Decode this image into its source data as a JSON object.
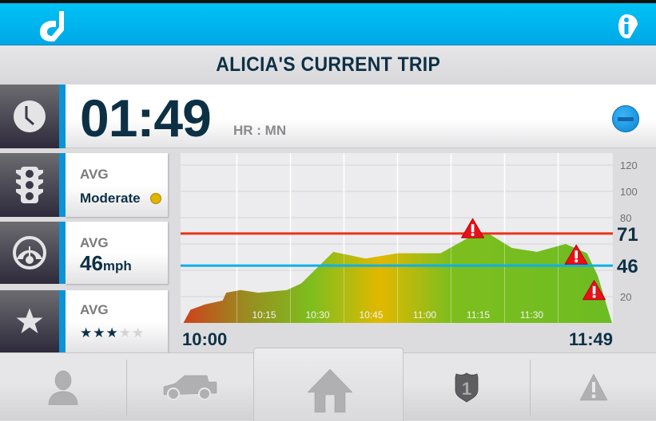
{
  "app": {
    "title": "ALICIA'S CURRENT TRIP",
    "logo_icon": "d-logo-icon",
    "info_icon": "info-icon",
    "accent_color": "#00b4ef"
  },
  "timer": {
    "value": "01:49",
    "unit": "HR : MN",
    "icon": "clock-icon",
    "collapse_icon": "minus-circle-icon"
  },
  "stats": [
    {
      "icon": "traffic-light-icon",
      "label": "AVG",
      "value": "Moderate",
      "indicator_color": "#e0b400"
    },
    {
      "icon": "speedometer-icon",
      "label": "AVG",
      "value": "46",
      "unit": "mph"
    },
    {
      "icon": "star-icon",
      "label": "AVG",
      "rating": 3,
      "rating_max": 5
    }
  ],
  "chart_data": {
    "type": "area",
    "x_start_label": "10:00",
    "x_end_label": "11:49",
    "x_tick_labels": [
      "10:15",
      "10:30",
      "10:45",
      "11:00",
      "11:15",
      "11:30"
    ],
    "y_tick_labels": [
      "120",
      "100",
      "80",
      "20"
    ],
    "ylim": [
      0,
      125
    ],
    "grid": true,
    "points": [
      {
        "t": "10:00",
        "v": 0
      },
      {
        "t": "10:02",
        "v": 10
      },
      {
        "t": "10:06",
        "v": 14
      },
      {
        "t": "10:11",
        "v": 17
      },
      {
        "t": "10:12",
        "v": 23
      },
      {
        "t": "10:16",
        "v": 25
      },
      {
        "t": "10:21",
        "v": 23
      },
      {
        "t": "10:29",
        "v": 25
      },
      {
        "t": "10:33",
        "v": 30
      },
      {
        "t": "10:42",
        "v": 54
      },
      {
        "t": "10:51",
        "v": 49
      },
      {
        "t": "11:00",
        "v": 53
      },
      {
        "t": "11:12",
        "v": 53
      },
      {
        "t": "11:22",
        "v": 68
      },
      {
        "t": "11:26",
        "v": 67
      },
      {
        "t": "11:32",
        "v": 57
      },
      {
        "t": "11:39",
        "v": 54
      },
      {
        "t": "11:47",
        "v": 60
      },
      {
        "t": "11:53",
        "v": 53
      },
      {
        "t": "11:56",
        "v": 36
      },
      {
        "t": "12:00",
        "v": 0
      }
    ],
    "thresholds": [
      {
        "label": "71",
        "value": 71,
        "color": "#e8341c"
      },
      {
        "label": "46",
        "value": 46,
        "color": "#0bb0ea"
      }
    ],
    "warnings": [
      {
        "t": "11:21",
        "v": 72
      },
      {
        "t": "11:50",
        "v": 52
      },
      {
        "t": "11:55",
        "v": 25
      }
    ]
  },
  "nav": [
    {
      "name": "profile",
      "icon": "person-icon"
    },
    {
      "name": "vehicle",
      "icon": "car-icon"
    },
    {
      "name": "home",
      "icon": "home-icon",
      "active": true
    },
    {
      "name": "routes",
      "icon": "highway-shield-icon",
      "shield_number": "1"
    },
    {
      "name": "alerts",
      "icon": "warning-icon"
    }
  ]
}
